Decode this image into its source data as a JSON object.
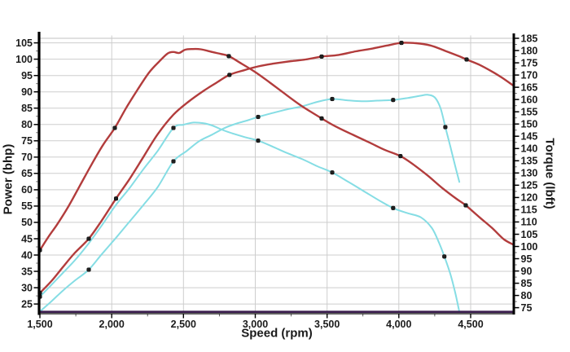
{
  "chart_data": {
    "type": "line",
    "title": "",
    "xlabel": "Speed (rpm)",
    "ylabel_left": "Power (bhp)",
    "ylabel_right": "Torque (lbft)",
    "grid": true,
    "legend": "none",
    "xlim": [
      1500,
      4795
    ],
    "x_ticks": [
      {
        "v": 1500,
        "label": "1,500"
      },
      {
        "v": 2000,
        "label": "2,000"
      },
      {
        "v": 2500,
        "label": "2,500"
      },
      {
        "v": 3000,
        "label": "3,000"
      },
      {
        "v": 3500,
        "label": "3,500"
      },
      {
        "v": 4000,
        "label": "4,000"
      },
      {
        "v": 4500,
        "label": "4,500"
      }
    ],
    "x_minor_step": 250,
    "left_axis": {
      "lim": [
        22.4,
        106.4
      ],
      "ticks": [
        25,
        30,
        35,
        40,
        45,
        50,
        55,
        60,
        65,
        70,
        75,
        80,
        85,
        90,
        95,
        100,
        105
      ],
      "minor_step": 2.5
    },
    "right_axis": {
      "lim": [
        73.05,
        185
      ],
      "ticks": [
        75,
        80,
        85,
        90,
        95,
        100,
        105,
        110,
        115,
        120,
        125,
        130,
        135,
        140,
        145,
        150,
        155,
        160,
        165,
        170,
        175,
        180,
        185
      ],
      "minor_step": 2.5
    },
    "colors": {
      "tuned": "#b23c3c",
      "standard": "#85dde4",
      "baseline": "#3b1e4e",
      "marker": "#1f1f1f",
      "grid": "#cdcdcd",
      "axis": "#000000",
      "text": "#1c1c1c"
    },
    "series": [
      {
        "name": "standard-torque",
        "axis": "right",
        "color_key": "standard",
        "width": 2,
        "points": [
          [
            1500,
            79.5
          ],
          [
            1580,
            84.3
          ],
          [
            1660,
            89.2
          ],
          [
            1750,
            94.8
          ],
          [
            1840,
            101.3
          ],
          [
            1930,
            108.5
          ],
          [
            2030,
            117
          ],
          [
            2120,
            123.5
          ],
          [
            2220,
            131.5
          ],
          [
            2320,
            139
          ],
          [
            2430,
            148.4
          ],
          [
            2500,
            149.7
          ],
          [
            2570,
            150.6
          ],
          [
            2640,
            150.3
          ],
          [
            2700,
            149.4
          ],
          [
            2780,
            147.4
          ],
          [
            2850,
            146
          ],
          [
            2930,
            144.6
          ],
          [
            3020,
            143.2
          ],
          [
            3120,
            140.8
          ],
          [
            3220,
            138.2
          ],
          [
            3330,
            135.6
          ],
          [
            3430,
            132.8
          ],
          [
            3536,
            130.2
          ],
          [
            3650,
            126.3
          ],
          [
            3750,
            122.8
          ],
          [
            3860,
            118.9
          ],
          [
            3960,
            115.7
          ],
          [
            4060,
            113.6
          ],
          [
            4153,
            111.9
          ],
          [
            4230,
            107.5
          ],
          [
            4280,
            101.5
          ],
          [
            4317,
            95.9
          ],
          [
            4360,
            88.5
          ],
          [
            4395,
            80.5
          ],
          [
            4421,
            73.3
          ]
        ],
        "markers": [
          [
            1500,
            79.5
          ],
          [
            2430,
            148.4
          ],
          [
            3020,
            143.2
          ],
          [
            3536,
            130.2
          ],
          [
            3960,
            115.7
          ],
          [
            4317,
            95.9
          ]
        ]
      },
      {
        "name": "standard-power",
        "axis": "left",
        "color_key": "standard",
        "width": 2,
        "points": [
          [
            1500,
            22.7
          ],
          [
            1580,
            25.8
          ],
          [
            1660,
            29.1
          ],
          [
            1750,
            32.4
          ],
          [
            1840,
            35.5
          ],
          [
            1930,
            40.2
          ],
          [
            2030,
            45.3
          ],
          [
            2120,
            50
          ],
          [
            2220,
            55.3
          ],
          [
            2320,
            60.8
          ],
          [
            2430,
            68.7
          ],
          [
            2520,
            71.8
          ],
          [
            2610,
            74.9
          ],
          [
            2700,
            76.9
          ],
          [
            2790,
            79
          ],
          [
            2870,
            80.3
          ],
          [
            2950,
            81.3
          ],
          [
            3020,
            82.3
          ],
          [
            3120,
            83.5
          ],
          [
            3220,
            84.6
          ],
          [
            3330,
            85.6
          ],
          [
            3430,
            86.9
          ],
          [
            3536,
            87.8
          ],
          [
            3640,
            87.4
          ],
          [
            3740,
            87.1
          ],
          [
            3850,
            87.3
          ],
          [
            3960,
            87.5
          ],
          [
            4060,
            88.1
          ],
          [
            4150,
            88.8
          ],
          [
            4200,
            89.1
          ],
          [
            4250,
            88.3
          ],
          [
            4290,
            85
          ],
          [
            4324,
            79.2
          ],
          [
            4360,
            73
          ],
          [
            4395,
            66.8
          ],
          [
            4421,
            62.4
          ]
        ],
        "markers": [
          [
            1840,
            35.5
          ],
          [
            2430,
            68.7
          ],
          [
            3020,
            82.3
          ],
          [
            3536,
            87.8
          ],
          [
            3960,
            87.5
          ],
          [
            4324,
            79.2
          ]
        ]
      },
      {
        "name": "tuned-torque",
        "axis": "right",
        "color_key": "tuned",
        "width": 2.4,
        "points": [
          [
            1500,
            98.5
          ],
          [
            1560,
            104
          ],
          [
            1620,
            109
          ],
          [
            1700,
            116.5
          ],
          [
            1780,
            125
          ],
          [
            1860,
            133.5
          ],
          [
            1940,
            141.5
          ],
          [
            2022,
            148.4
          ],
          [
            2100,
            156.5
          ],
          [
            2180,
            164
          ],
          [
            2260,
            171
          ],
          [
            2330,
            175.5
          ],
          [
            2390,
            178.8
          ],
          [
            2430,
            179.4
          ],
          [
            2470,
            179
          ],
          [
            2510,
            180.3
          ],
          [
            2560,
            180.6
          ],
          [
            2620,
            180.5
          ],
          [
            2700,
            179.4
          ],
          [
            2760,
            178.6
          ],
          [
            2816,
            177.7
          ],
          [
            2900,
            174.8
          ],
          [
            3000,
            171.2
          ],
          [
            3100,
            167
          ],
          [
            3200,
            162.6
          ],
          [
            3320,
            157.5
          ],
          [
            3462,
            152.3
          ],
          [
            3560,
            149
          ],
          [
            3680,
            145.6
          ],
          [
            3800,
            142.3
          ],
          [
            3900,
            139.5
          ],
          [
            4011,
            136.9
          ],
          [
            4100,
            133.5
          ],
          [
            4200,
            129
          ],
          [
            4300,
            124
          ],
          [
            4400,
            119.5
          ],
          [
            4466,
            116.8
          ],
          [
            4560,
            112
          ],
          [
            4650,
            107.5
          ],
          [
            4730,
            103
          ],
          [
            4795,
            100.8
          ]
        ],
        "markers": [
          [
            1500,
            98.5
          ],
          [
            2022,
            148.4
          ],
          [
            2816,
            177.7
          ],
          [
            3462,
            152.3
          ],
          [
            4011,
            136.9
          ],
          [
            4466,
            116.8
          ]
        ]
      },
      {
        "name": "tuned-power",
        "axis": "left",
        "color_key": "tuned",
        "width": 2.4,
        "points": [
          [
            1500,
            28.4
          ],
          [
            1580,
            32
          ],
          [
            1660,
            36.3
          ],
          [
            1740,
            40.5
          ],
          [
            1840,
            45
          ],
          [
            1930,
            50.5
          ],
          [
            2030,
            57.3
          ],
          [
            2120,
            63
          ],
          [
            2220,
            70
          ],
          [
            2320,
            77
          ],
          [
            2430,
            83
          ],
          [
            2530,
            86.8
          ],
          [
            2640,
            90.3
          ],
          [
            2730,
            92.8
          ],
          [
            2820,
            95.2
          ],
          [
            2920,
            96.6
          ],
          [
            3020,
            97.8
          ],
          [
            3120,
            98.6
          ],
          [
            3250,
            99.4
          ],
          [
            3350,
            99.9
          ],
          [
            3462,
            100.8
          ],
          [
            3580,
            101.3
          ],
          [
            3700,
            102.4
          ],
          [
            3820,
            103.3
          ],
          [
            3920,
            104.2
          ],
          [
            4018,
            105
          ],
          [
            4120,
            104.9
          ],
          [
            4220,
            104.2
          ],
          [
            4320,
            102.6
          ],
          [
            4420,
            100.9
          ],
          [
            4472,
            99.9
          ],
          [
            4560,
            98.3
          ],
          [
            4650,
            96.2
          ],
          [
            4720,
            94.3
          ],
          [
            4795,
            92
          ]
        ],
        "markers": [
          [
            1500,
            28.4
          ],
          [
            1840,
            45
          ],
          [
            2030,
            57.3
          ],
          [
            2820,
            95.2
          ],
          [
            3462,
            100.8
          ],
          [
            4018,
            105
          ],
          [
            4472,
            99.9
          ]
        ]
      },
      {
        "name": "baseline-flat",
        "axis": "left",
        "color_key": "baseline",
        "width": 2.6,
        "points": [
          [
            1500,
            22.6
          ],
          [
            4795,
            22.6
          ]
        ],
        "markers": []
      }
    ]
  }
}
